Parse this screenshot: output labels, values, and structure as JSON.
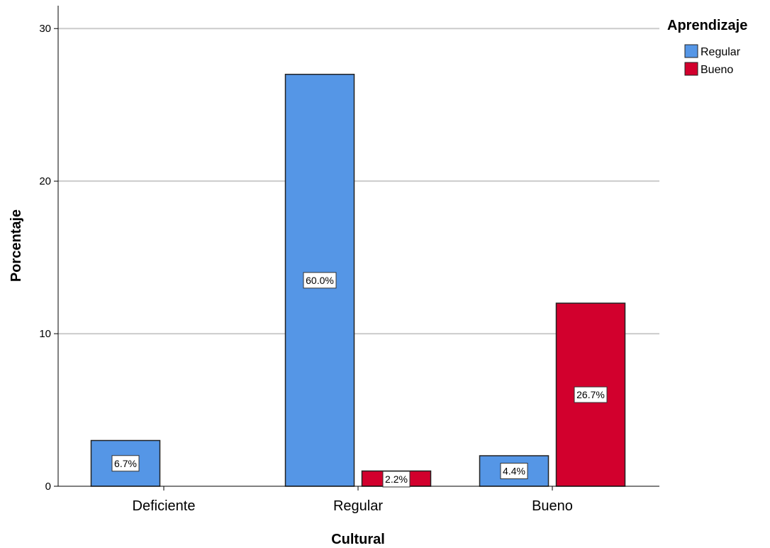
{
  "chart_data": {
    "type": "bar",
    "title": "",
    "xlabel": "Cultural",
    "ylabel": "Porcentaje",
    "categories": [
      "Deficiente",
      "Regular",
      "Bueno"
    ],
    "ylim": [
      0,
      31.5
    ],
    "yticks": [
      0,
      10,
      20,
      30
    ],
    "grid": true,
    "legend": {
      "title": "Aprendizaje",
      "placement": "top-right"
    },
    "series": [
      {
        "name": "Regular",
        "color": "#5596E6",
        "values": [
          3,
          27,
          2
        ],
        "labels": [
          "6.7%",
          "60.0%",
          "4.4%"
        ]
      },
      {
        "name": "Bueno",
        "color": "#D2002D",
        "values": [
          0,
          1,
          12
        ],
        "labels": [
          "",
          "2.2%",
          "26.7%"
        ]
      }
    ]
  }
}
